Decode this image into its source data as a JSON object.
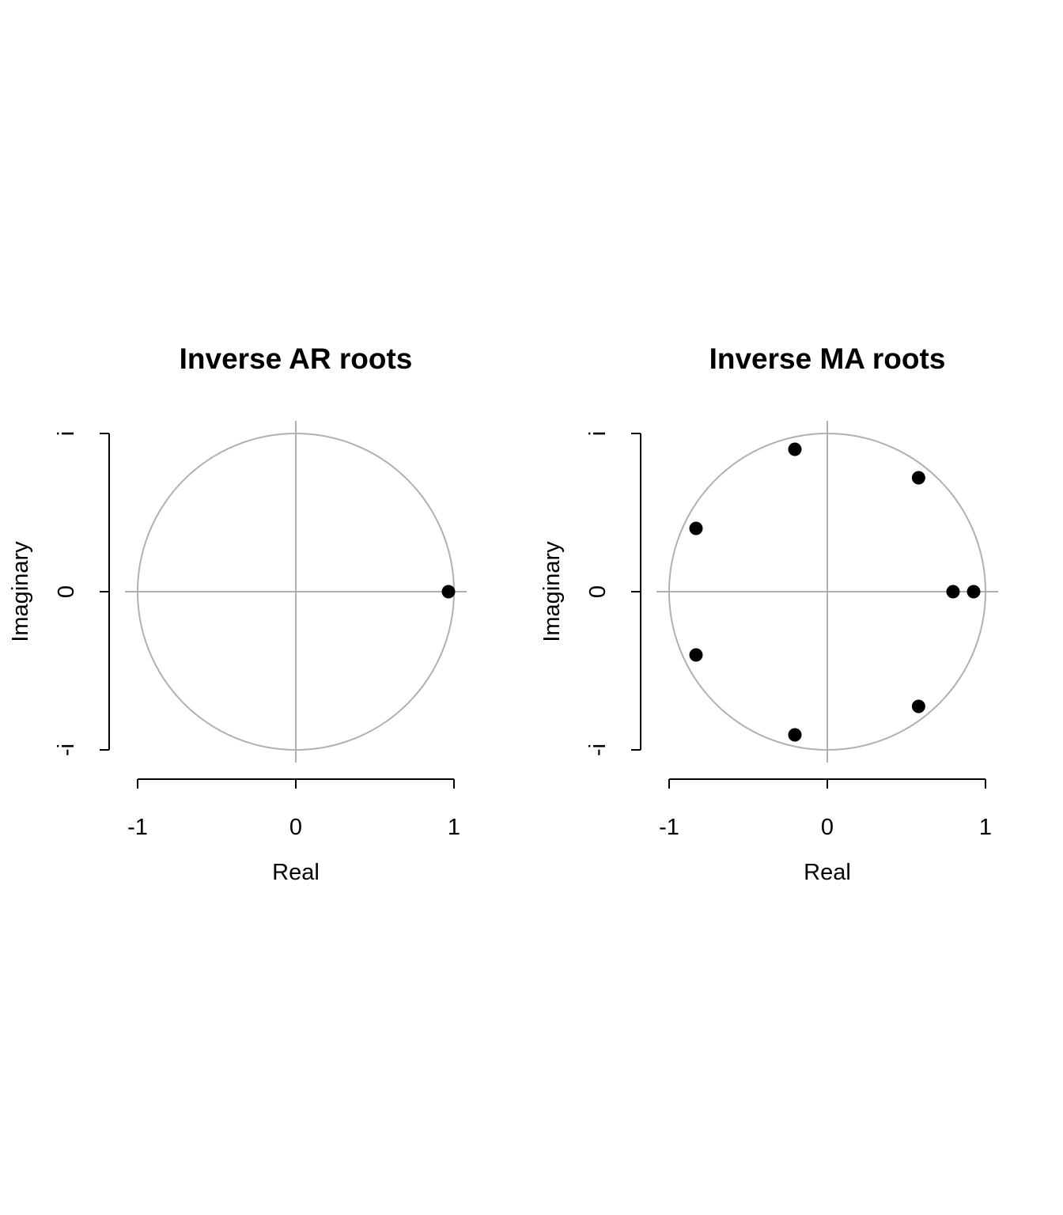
{
  "chart_data": [
    {
      "type": "scatter",
      "title": "Inverse AR roots",
      "xlabel": "Real",
      "ylabel": "Imaginary",
      "xlim": [
        -1,
        1
      ],
      "ylim": [
        -1,
        1
      ],
      "x_ticks": [
        {
          "value": -1,
          "label": "-1"
        },
        {
          "value": 0,
          "label": "0"
        },
        {
          "value": 1,
          "label": "1"
        }
      ],
      "y_ticks": [
        {
          "value": -1,
          "label": "-i"
        },
        {
          "value": 0,
          "label": "0"
        },
        {
          "value": 1,
          "label": "i"
        }
      ],
      "unit_circle": true,
      "grid": false,
      "points": [
        {
          "re": 0.965,
          "im": 0.0
        }
      ]
    },
    {
      "type": "scatter",
      "title": "Inverse MA roots",
      "xlabel": "Real",
      "ylabel": "Imaginary",
      "xlim": [
        -1,
        1
      ],
      "ylim": [
        -1,
        1
      ],
      "x_ticks": [
        {
          "value": -1,
          "label": "-1"
        },
        {
          "value": 0,
          "label": "0"
        },
        {
          "value": 1,
          "label": "1"
        }
      ],
      "y_ticks": [
        {
          "value": -1,
          "label": "-i"
        },
        {
          "value": 0,
          "label": "0"
        },
        {
          "value": 1,
          "label": "i"
        }
      ],
      "unit_circle": true,
      "grid": false,
      "points": [
        {
          "re": -0.205,
          "im": 0.9
        },
        {
          "re": 0.577,
          "im": 0.72
        },
        {
          "re": -0.83,
          "im": 0.4
        },
        {
          "re": 0.795,
          "im": 0.0
        },
        {
          "re": 0.925,
          "im": 0.0
        },
        {
          "re": -0.83,
          "im": -0.4
        },
        {
          "re": 0.577,
          "im": -0.725
        },
        {
          "re": -0.205,
          "im": -0.905
        }
      ]
    }
  ]
}
